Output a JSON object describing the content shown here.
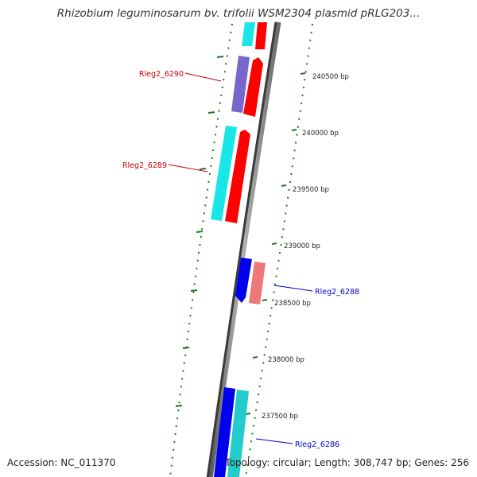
{
  "title": "Rhizobium leguminosarum bv. trifolii WSM2304 plasmid pRLG203...",
  "footer": {
    "accession": "Accession: NC_011370",
    "summary": "Topology: circular; Length: 308,747 bp; Genes: 256"
  },
  "ticks": [
    {
      "label": "240500 bp"
    },
    {
      "label": "240000 bp"
    },
    {
      "label": "239500 bp"
    },
    {
      "label": "239000 bp"
    },
    {
      "label": "238500 bp"
    },
    {
      "label": "238000 bp"
    },
    {
      "label": "237500 bp"
    }
  ],
  "genes": [
    {
      "label": "Rleg2_6290",
      "color": "#cc0000"
    },
    {
      "label": "Rleg2_6289",
      "color": "#cc0000"
    },
    {
      "label": "Rleg2_6288",
      "color": "#0000cc"
    },
    {
      "label": "Rleg2_6286",
      "color": "#0000cc"
    }
  ],
  "colors": {
    "backbone": "#8a8a8a",
    "ticks": "#1a7a1a",
    "cyan": "#19e6e6",
    "red": "#ff0000",
    "purple": "#7766cc",
    "blue": "#0000ee",
    "pink": "#ee7777",
    "teal": "#22cccc"
  }
}
